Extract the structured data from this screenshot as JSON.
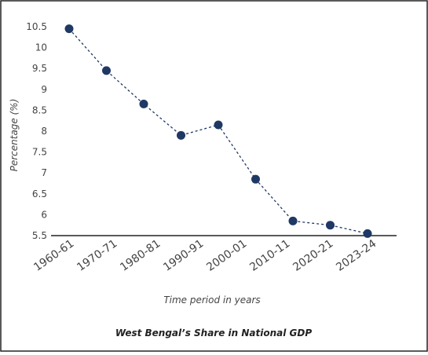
{
  "chart_data": {
    "type": "line",
    "title": "West Bengal’s Share in National GDP",
    "x_label": "Time period in years",
    "y_label": "Percentage (%)",
    "categories": [
      "1960-61",
      "1970-71",
      "1980-81",
      "1990-91",
      "2000-01",
      "2010-11",
      "2020-21",
      "2023-24",
      null
    ],
    "values": [
      10.45,
      9.45,
      8.65,
      7.9,
      8.15,
      6.85,
      5.85,
      5.75,
      5.55
    ],
    "color": "#1f3864",
    "ylim": [
      5.5,
      10.5
    ],
    "yticks": [
      5.5,
      6,
      6.5,
      7,
      7.5,
      8,
      8.5,
      9,
      9.5,
      10,
      10.5
    ],
    "grid": false
  }
}
